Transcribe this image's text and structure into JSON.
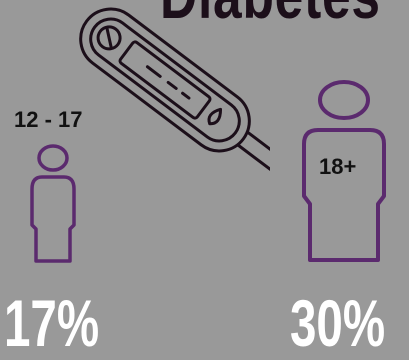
{
  "title": "Diabetes",
  "groups": [
    {
      "age_label": "12 - 17",
      "percentage": "17%",
      "figure_icon": "person-icon"
    },
    {
      "age_label": "18+",
      "percentage": "30%",
      "figure_icon": "person-icon"
    }
  ],
  "device_icon": "glucose-meter-icon",
  "colors": {
    "background": "#999999",
    "accent_purple": "#5b2a6e",
    "title_dark": "#1c0f1a",
    "percentage_white": "#ffffff"
  }
}
